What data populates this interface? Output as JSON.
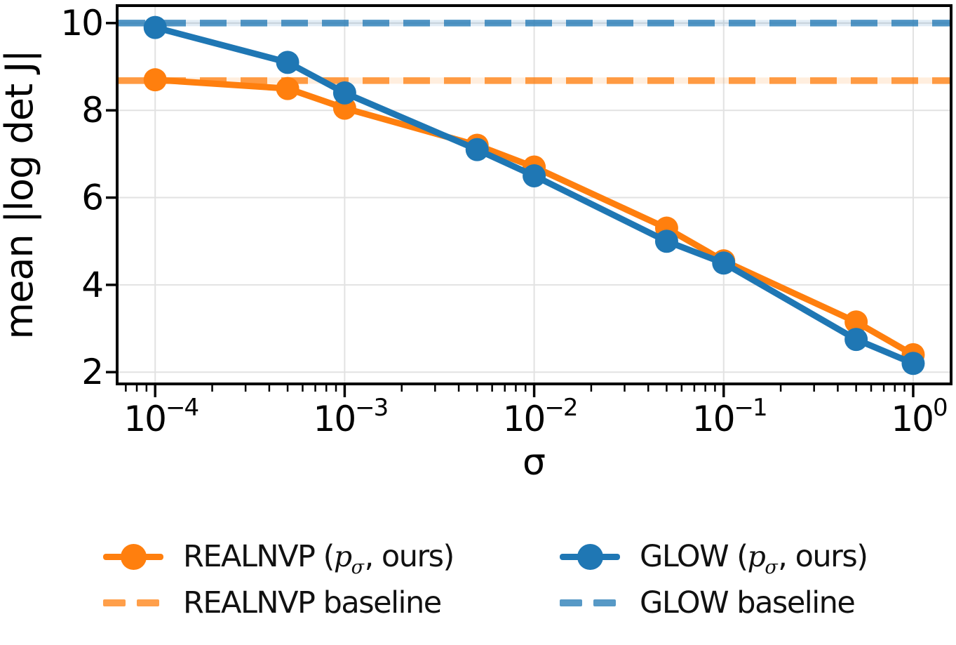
{
  "chart_data": {
    "type": "line",
    "title": "",
    "xlabel": "σ",
    "ylabel": "mean |log det J|",
    "x_scale": "log",
    "y_scale": "linear",
    "xlim": [
      6.3e-05,
      1.585
    ],
    "ylim": [
      1.73,
      10.4
    ],
    "grid": true,
    "legend_position": "bottom",
    "x": [
      0.0001,
      0.0005,
      0.001,
      0.005,
      0.01,
      0.05,
      0.1,
      0.5,
      1.0
    ],
    "series": [
      {
        "name": "REALNVP (p_sigma, ours)",
        "color": "#ff7f0e",
        "style": "solid",
        "marker": "circle",
        "values": [
          8.7,
          8.5,
          8.05,
          7.2,
          6.7,
          5.3,
          4.55,
          3.15,
          2.4
        ]
      },
      {
        "name": "GLOW (p_sigma, ours)",
        "color": "#1f77b4",
        "style": "solid",
        "marker": "circle",
        "values": [
          9.9,
          9.1,
          8.4,
          7.1,
          6.5,
          5.0,
          4.5,
          2.75,
          2.2
        ]
      }
    ],
    "baselines": [
      {
        "name": "REALNVP baseline",
        "color": "#ff7f0e",
        "opacity": 0.75,
        "y": 8.68,
        "style": "dashed"
      },
      {
        "name": "GLOW baseline",
        "color": "#1f77b4",
        "opacity": 0.75,
        "y": 10.0,
        "style": "dashed"
      }
    ],
    "xticks": [
      {
        "v": 0.0001,
        "base": "10",
        "exp": "−4"
      },
      {
        "v": 0.001,
        "base": "10",
        "exp": "−3"
      },
      {
        "v": 0.01,
        "base": "10",
        "exp": "−2"
      },
      {
        "v": 0.1,
        "base": "10",
        "exp": "−1"
      },
      {
        "v": 1.0,
        "base": "10",
        "exp": "0"
      }
    ],
    "yticks": [
      {
        "v": 2,
        "label": "2"
      },
      {
        "v": 4,
        "label": "4"
      },
      {
        "v": 6,
        "label": "6"
      },
      {
        "v": 8,
        "label": "8"
      },
      {
        "v": 10,
        "label": "10"
      }
    ],
    "grid_color": "#e2e2e2",
    "spine_color": "#000000"
  },
  "legend": {
    "entries": [
      {
        "name": "realnvp-ours",
        "swatch": "solid-marker",
        "color": "#ff7f0e",
        "opacity": 1,
        "label_pre": "REALNVP (",
        "math_var": "p",
        "math_sub": "σ",
        "label_post": ", ours)"
      },
      {
        "name": "glow-ours",
        "swatch": "solid-marker",
        "color": "#1f77b4",
        "opacity": 1,
        "label_pre": "GLOW (",
        "math_var": "p",
        "math_sub": "σ",
        "label_post": ", ours)"
      },
      {
        "name": "realnvp-baseline",
        "swatch": "dashed",
        "color": "#ff7f0e",
        "opacity": 0.75,
        "label": "REALNVP baseline"
      },
      {
        "name": "glow-baseline",
        "swatch": "dashed",
        "color": "#1f77b4",
        "opacity": 0.75,
        "label": "GLOW baseline"
      }
    ]
  }
}
